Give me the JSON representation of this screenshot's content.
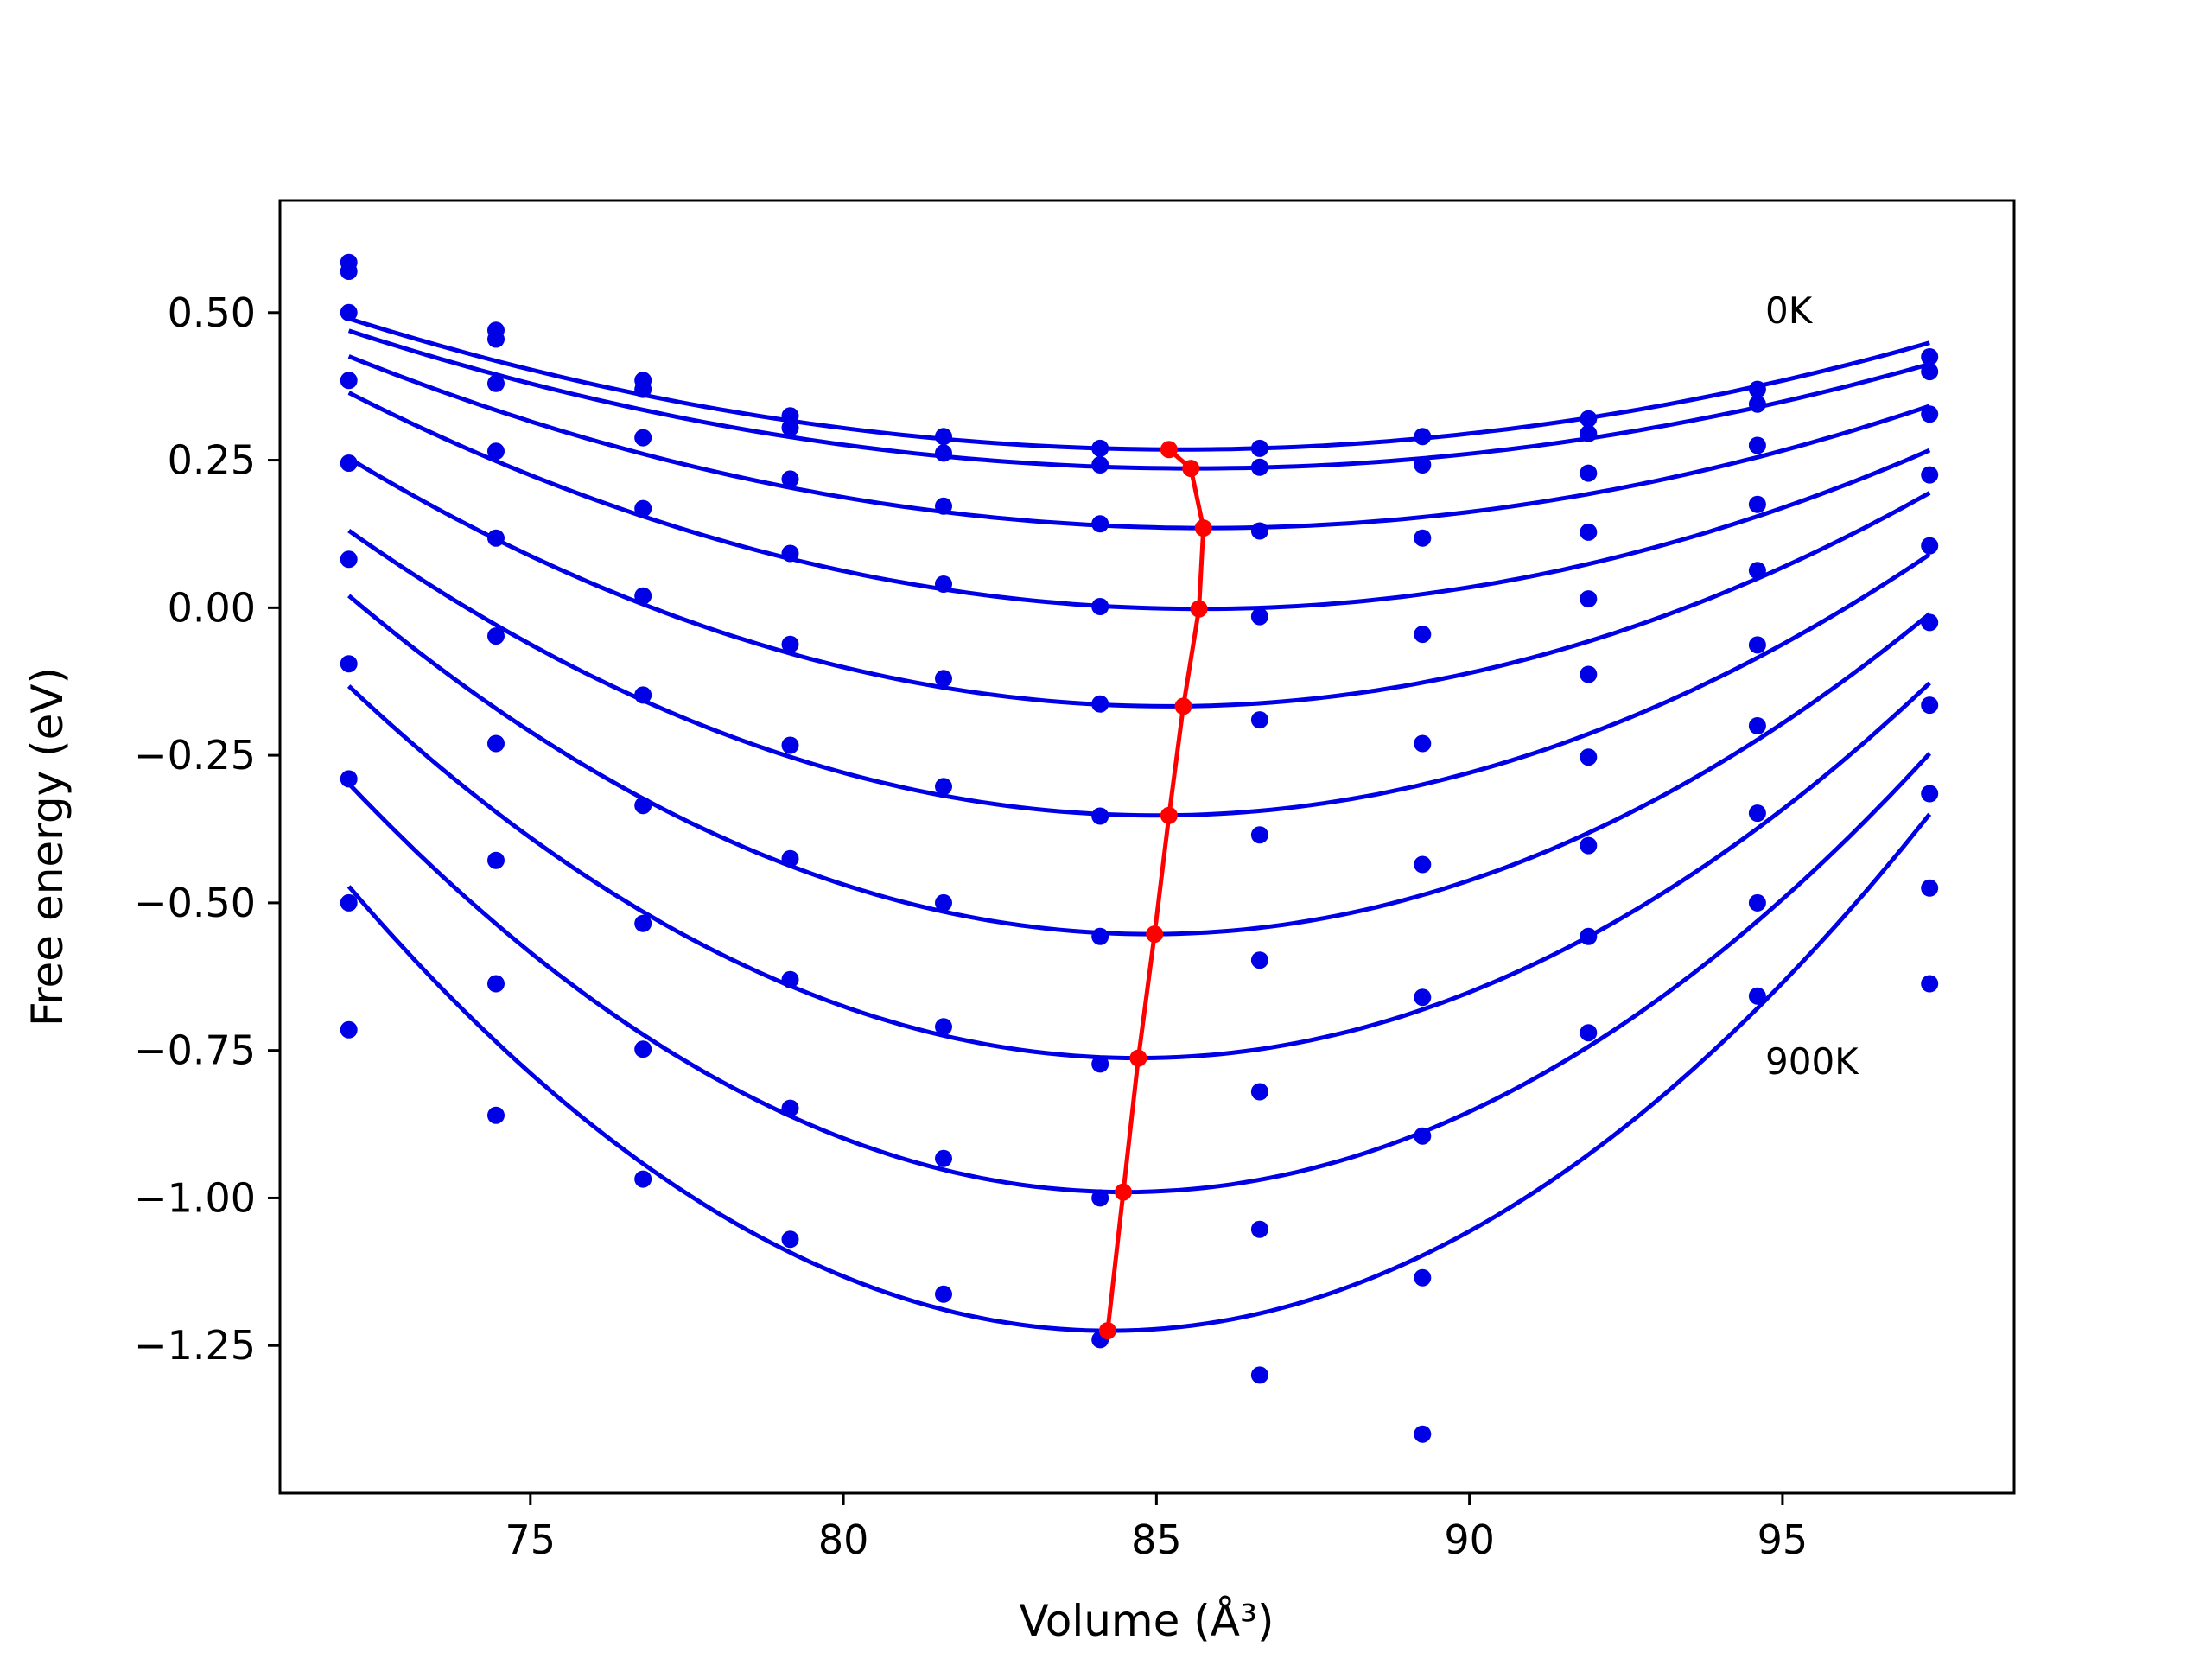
{
  "chart_data": {
    "type": "scatter",
    "title": "",
    "xlabel": "Volume (Å³)",
    "ylabel": "Free energy (eV)",
    "xlim": [
      71,
      98.7
    ],
    "ylim": [
      -1.5,
      0.69
    ],
    "xticks": [
      75,
      80,
      85,
      90,
      95
    ],
    "yticks": [
      0.5,
      0.25,
      0.0,
      -0.25,
      -0.5,
      -0.75,
      -1.0,
      -1.25
    ],
    "xtick_labels": [
      "75",
      "80",
      "85",
      "90",
      "95"
    ],
    "ytick_labels": [
      "0.50",
      "0.25",
      "0.00",
      "−0.25",
      "−0.50",
      "−0.75",
      "−1.00",
      "−1.25"
    ],
    "grid": false,
    "volumes": [
      72.1,
      74.45,
      76.8,
      79.15,
      81.6,
      84.1,
      86.65,
      89.25,
      91.9,
      94.6,
      97.35
    ],
    "series": [
      {
        "values": [
          0.585,
          0.47,
          0.385,
          0.325,
          0.29,
          0.27,
          0.27,
          0.29,
          0.32,
          0.37,
          0.425
        ]
      },
      {
        "values": [
          0.57,
          0.455,
          0.37,
          0.305,
          0.262,
          0.242,
          0.238,
          0.242,
          0.295,
          0.345,
          0.4
        ]
      },
      {
        "values": [
          0.5,
          0.38,
          0.288,
          0.218,
          0.172,
          0.142,
          0.13,
          0.118,
          0.228,
          0.275,
          0.328
        ]
      },
      {
        "values": [
          0.385,
          0.265,
          0.168,
          0.092,
          0.04,
          0.002,
          -0.015,
          -0.045,
          0.128,
          0.175,
          0.225
        ]
      },
      {
        "values": [
          0.245,
          0.118,
          0.02,
          -0.062,
          -0.12,
          -0.163,
          -0.19,
          -0.23,
          0.015,
          0.063,
          0.105
        ]
      },
      {
        "values": [
          0.082,
          -0.048,
          -0.148,
          -0.233,
          -0.303,
          -0.353,
          -0.385,
          -0.435,
          -0.113,
          -0.063,
          -0.025
        ]
      },
      {
        "values": [
          -0.095,
          -0.23,
          -0.335,
          -0.425,
          -0.5,
          -0.557,
          -0.597,
          -0.66,
          -0.253,
          -0.2,
          -0.165
        ]
      },
      {
        "values": [
          -0.29,
          -0.428,
          -0.535,
          -0.63,
          -0.71,
          -0.773,
          -0.82,
          -0.895,
          -0.403,
          -0.348,
          -0.315
        ]
      },
      {
        "values": [
          -0.5,
          -0.637,
          -0.748,
          -0.848,
          -0.933,
          -1.0,
          -1.053,
          -1.135,
          -0.557,
          -0.5,
          -0.475
        ]
      },
      {
        "values": [
          -0.715,
          -0.86,
          -0.968,
          -1.07,
          -1.163,
          -1.24,
          -1.3,
          -1.4,
          -0.72,
          -0.658,
          -0.637
        ]
      }
    ],
    "fits": [
      {
        "a": 0.00126,
        "v0": 85.37,
        "e0": 0.268
      },
      {
        "a": 0.00128,
        "v0": 85.6,
        "e0": 0.236
      },
      {
        "a": 0.00155,
        "v0": 85.8,
        "e0": 0.135
      },
      {
        "a": 0.00198,
        "v0": 85.7,
        "e0": -0.002
      },
      {
        "a": 0.00245,
        "v0": 85.2,
        "e0": -0.167
      },
      {
        "a": 0.0029,
        "v0": 85.0,
        "e0": -0.352
      },
      {
        "a": 0.0035,
        "v0": 84.9,
        "e0": -0.553
      },
      {
        "a": 0.00397,
        "v0": 84.7,
        "e0": -0.763
      },
      {
        "a": 0.0045,
        "v0": 84.5,
        "e0": -0.99
      },
      {
        "a": 0.0051,
        "v0": 84.25,
        "e0": -1.225
      }
    ],
    "minima_line": {
      "x": [
        85.2,
        85.55,
        85.75,
        85.68,
        85.43,
        85.2,
        84.97,
        84.71,
        84.47,
        84.22
      ],
      "y": [
        0.268,
        0.236,
        0.135,
        -0.002,
        -0.167,
        -0.352,
        -0.553,
        -0.763,
        -0.99,
        -1.225
      ]
    },
    "colors": {
      "series": "#0000e6",
      "minima": "#ff0000",
      "axes": "#000000"
    },
    "annotations": [
      {
        "text": "0K",
        "x": 94.6,
        "y": 0.49
      },
      {
        "text": "900K",
        "x": 94.6,
        "y": -0.78
      }
    ]
  }
}
